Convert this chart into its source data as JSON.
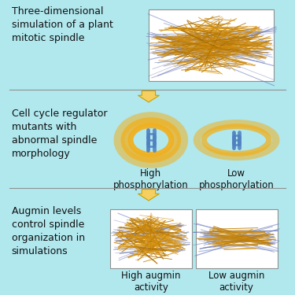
{
  "background_color": "#b0e8ee",
  "white_box_color": "#ffffff",
  "border_color": "#909090",
  "text_color": "#111111",
  "arrow_color": "#f5d060",
  "arrow_edge_color": "#c8a000",
  "divider_color": "#909090",
  "font_size": 9,
  "label_font_size": 8.5,
  "section1_text": "Three-dimensional\nsimulation of a plant\nmitotic spindle",
  "section2_text": "Cell cycle regulator\nmutants with\nabnormal spindle\nmorphology",
  "section3_text": "Augmin levels\ncontrol spindle\norganization in\nsimulations",
  "label_high_phos": "High\nphosphorylation",
  "label_low_phos": "Low\nphosphorylation",
  "label_high_aug": "High augmin\nactivity",
  "label_low_aug": "Low augmin\nactivity"
}
